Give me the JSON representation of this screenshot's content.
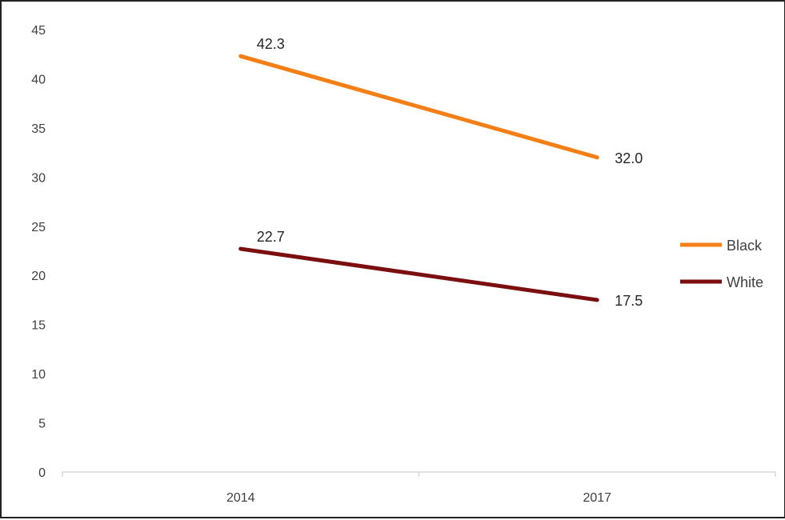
{
  "chart_data": {
    "type": "line",
    "categories": [
      "2014",
      "2017"
    ],
    "series": [
      {
        "name": "Black",
        "values": [
          42.3,
          32.0
        ],
        "labels": [
          "42.3",
          "32.0"
        ],
        "color": "#f57f17"
      },
      {
        "name": "White",
        "values": [
          22.7,
          17.5
        ],
        "labels": [
          "22.7",
          "17.5"
        ],
        "color": "#7b0f0f"
      }
    ],
    "ylim": [
      0,
      45
    ],
    "yticks": [
      "0",
      "5",
      "10",
      "15",
      "20",
      "25",
      "30",
      "35",
      "40",
      "45"
    ],
    "grid": false,
    "legend_position": "right"
  },
  "colors": {
    "axis": "#d9d9d9",
    "tick_text": "#404040",
    "frame": "#222222"
  }
}
